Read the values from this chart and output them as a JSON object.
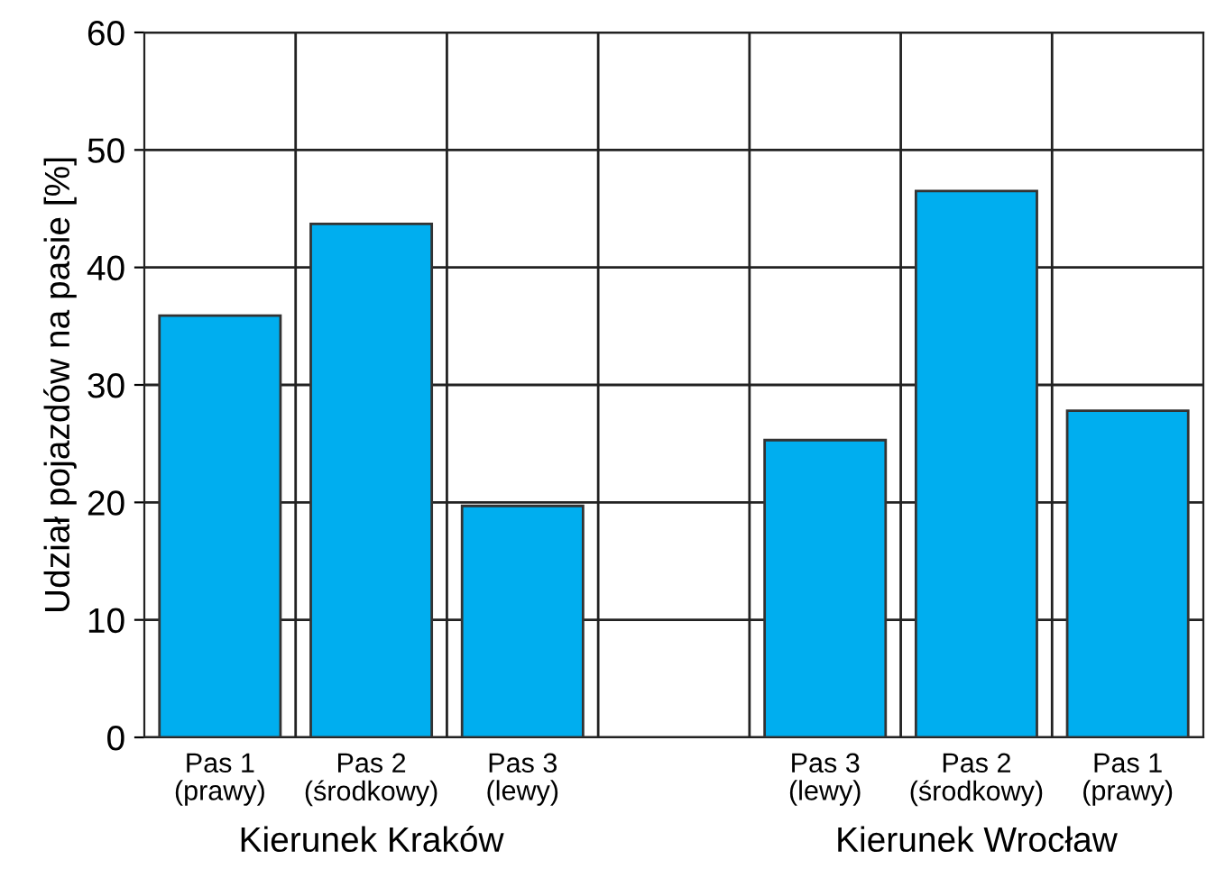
{
  "chart_data": {
    "type": "bar",
    "ylabel": "Udział pojazdów na pasie [%]",
    "categories": [
      "Pas 1\n(prawy)",
      "Pas 2\n(środkowy)",
      "Pas 3\n(lewy)",
      null,
      "Pas 3\n(lewy)",
      "Pas 2\n(środkowy)",
      "Pas 1\n(prawy)"
    ],
    "values": [
      35.9,
      43.7,
      19.7,
      null,
      25.3,
      46.5,
      27.8
    ],
    "color": "#00aeef",
    "ylim": [
      0,
      60
    ],
    "yticks": [
      0,
      10,
      20,
      30,
      40,
      50,
      60
    ],
    "grid": true,
    "annotations": [
      "Kierunek Kraków",
      "Kierunek Wrocław"
    ]
  }
}
